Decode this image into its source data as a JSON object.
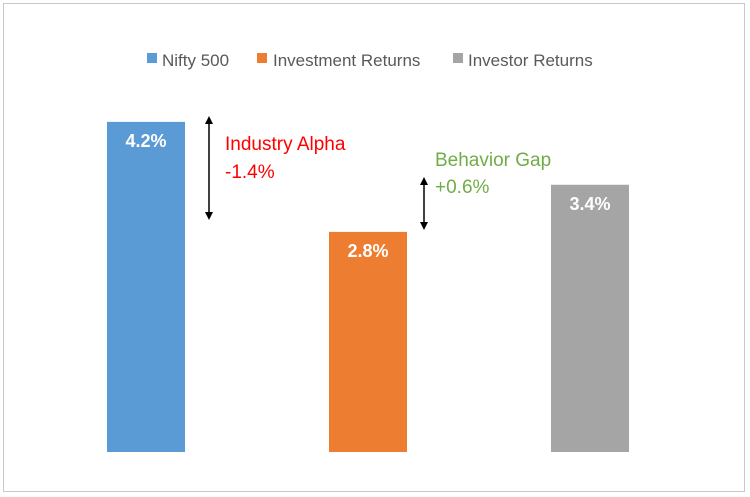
{
  "chart_data": {
    "type": "bar",
    "title": "",
    "xlabel": "",
    "ylabel": "",
    "ylim": [
      0,
      5.2
    ],
    "grid": false,
    "legend_position": "top-center",
    "series": [
      {
        "name": "Nifty 500",
        "value": 4.2,
        "label": "4.2%",
        "color": "#5B9BD5"
      },
      {
        "name": "Investment Returns",
        "value": 2.8,
        "label": "2.8%",
        "color": "#ED7D31"
      },
      {
        "name": "Investor Returns",
        "value": 3.4,
        "label": "3.4%",
        "color": "#A5A5A5"
      }
    ],
    "annotations": [
      {
        "title": "Industry Alpha",
        "value": "-1.4%",
        "color": "#FF0000",
        "from": 4.2,
        "to": 2.8
      },
      {
        "title": "Behavior Gap",
        "value": "+0.6%",
        "color": "#70AD47",
        "from": 3.4,
        "to": 2.8
      }
    ]
  }
}
